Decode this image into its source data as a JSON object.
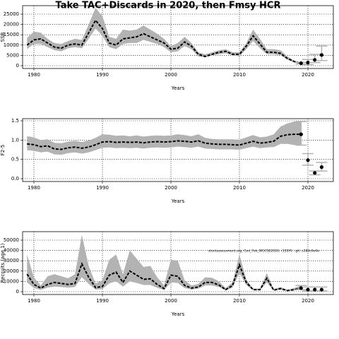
{
  "title": "Take TAC+Discards in 2020, then Fmsy HCR",
  "chart_data": [
    {
      "type": "line",
      "ylabel": "SSB",
      "xlabel": "Years",
      "xlim": [
        1978.35,
        2023.71
      ],
      "xticks": [
        1980,
        1990,
        2000,
        2010,
        2020
      ],
      "ylim": [
        -1370,
        29110
      ],
      "yticks": [
        0,
        5000,
        10000,
        15000,
        20000,
        25000
      ],
      "grid": true,
      "x": [
        1979,
        1980,
        1981,
        1982,
        1983,
        1984,
        1985,
        1986,
        1987,
        1988,
        1989,
        1990,
        1991,
        1992,
        1993,
        1994,
        1995,
        1996,
        1997,
        1998,
        1999,
        2000,
        2001,
        2002,
        2003,
        2004,
        2005,
        2006,
        2007,
        2008,
        2009,
        2010,
        2011,
        2012,
        2013,
        2014,
        2015,
        2016,
        2017,
        2018,
        2019
      ],
      "median": [
        10000,
        12500,
        13000,
        11000,
        9000,
        8500,
        10000,
        10500,
        10000,
        16000,
        22000,
        18000,
        11000,
        10000,
        13000,
        13500,
        14000,
        15500,
        14000,
        12500,
        11000,
        8000,
        8500,
        11500,
        9500,
        5500,
        4500,
        5500,
        6500,
        7000,
        5500,
        5500,
        9500,
        14500,
        10500,
        6500,
        6500,
        6000,
        3500,
        2000,
        1200
      ],
      "upper": [
        13500,
        16500,
        16000,
        13000,
        11000,
        10500,
        12000,
        13000,
        12500,
        20000,
        28000,
        24000,
        14000,
        13000,
        17500,
        17000,
        17500,
        19500,
        17500,
        15500,
        13000,
        9500,
        11000,
        14000,
        11000,
        6500,
        5500,
        6500,
        7500,
        8000,
        6500,
        6500,
        11000,
        17500,
        13000,
        8000,
        8000,
        7500,
        4500,
        2500,
        1500
      ],
      "lower": [
        8000,
        10500,
        10500,
        9000,
        7500,
        7000,
        8500,
        9000,
        8500,
        13000,
        18000,
        14500,
        9000,
        8000,
        10500,
        11000,
        11000,
        12500,
        11500,
        10500,
        9000,
        6500,
        7000,
        9500,
        8000,
        4500,
        4000,
        5000,
        5500,
        6000,
        5000,
        4500,
        8000,
        12000,
        8500,
        5500,
        5500,
        5000,
        3000,
        1700,
        900
      ],
      "proj_x": [
        2019,
        2020,
        2021,
        2022
      ],
      "proj_values": [
        1200,
        1500,
        2800,
        5200
      ],
      "proj_lower": [
        800,
        500,
        1500,
        2500
      ],
      "proj_upper": [
        1600,
        3000,
        5500,
        9500
      ],
      "band_color": "#b3b3b3",
      "line_color": "#000000"
    },
    {
      "type": "line",
      "ylabel": "F2-5",
      "xlabel": "Years",
      "xlim": [
        1978.35,
        2023.71
      ],
      "xticks": [
        1980,
        1990,
        2000,
        2010,
        2020
      ],
      "ylim": [
        -0.073,
        1.555
      ],
      "yticks": [
        {
          "value": 0,
          "label": "0.0"
        },
        0.5,
        {
          "value": 1,
          "label": "1.0"
        },
        1.5
      ],
      "grid": true,
      "x": [
        1979,
        1980,
        1981,
        1982,
        1983,
        1984,
        1985,
        1986,
        1987,
        1988,
        1989,
        1990,
        1991,
        1992,
        1993,
        1994,
        1995,
        1996,
        1997,
        1998,
        1999,
        2000,
        2001,
        2002,
        2003,
        2004,
        2005,
        2006,
        2007,
        2008,
        2009,
        2010,
        2011,
        2012,
        2013,
        2014,
        2015,
        2016,
        2017,
        2018,
        2019
      ],
      "median": [
        0.9,
        0.88,
        0.83,
        0.85,
        0.77,
        0.76,
        0.8,
        0.82,
        0.79,
        0.82,
        0.88,
        0.95,
        0.96,
        0.94,
        0.95,
        0.94,
        0.95,
        0.93,
        0.95,
        0.96,
        0.95,
        0.96,
        0.98,
        0.97,
        0.95,
        0.98,
        0.92,
        0.9,
        0.89,
        0.89,
        0.88,
        0.87,
        0.92,
        0.97,
        0.92,
        0.94,
        0.97,
        1.1,
        1.14,
        1.15,
        1.15
      ],
      "upper": [
        1.1,
        1.07,
        1.0,
        1.02,
        0.93,
        0.92,
        0.96,
        0.98,
        0.95,
        0.99,
        1.06,
        1.15,
        1.14,
        1.11,
        1.12,
        1.1,
        1.12,
        1.09,
        1.11,
        1.12,
        1.11,
        1.12,
        1.15,
        1.13,
        1.1,
        1.15,
        1.06,
        1.03,
        1.02,
        1.02,
        1.02,
        1.01,
        1.07,
        1.13,
        1.07,
        1.09,
        1.15,
        1.35,
        1.43,
        1.48,
        1.48
      ],
      "lower": [
        0.74,
        0.72,
        0.68,
        0.7,
        0.63,
        0.62,
        0.66,
        0.68,
        0.65,
        0.68,
        0.74,
        0.8,
        0.81,
        0.79,
        0.8,
        0.79,
        0.8,
        0.78,
        0.8,
        0.81,
        0.8,
        0.81,
        0.83,
        0.82,
        0.8,
        0.83,
        0.78,
        0.77,
        0.76,
        0.76,
        0.76,
        0.75,
        0.79,
        0.83,
        0.79,
        0.81,
        0.82,
        0.9,
        0.9,
        0.87,
        0.87
      ],
      "proj_x": [
        2019,
        2020,
        2021,
        2022
      ],
      "proj_values": [
        1.15,
        0.48,
        0.15,
        0.3
      ],
      "proj_lower": [
        0.87,
        0.35,
        0.1,
        0.2
      ],
      "proj_upper": [
        1.48,
        0.65,
        0.2,
        0.42
      ],
      "band_color": "#b3b3b3",
      "line_color": "#000000"
    },
    {
      "type": "line",
      "ylabel": "Recruits (age 1)",
      "xlabel": "Years",
      "annotation": "stockassessment.org: Cod_7ek_WGCSE2020, r1SSY0 : git: c28dc0e4a",
      "xlim": [
        1978.35,
        2023.71
      ],
      "xticks": [
        1980,
        1990,
        2000,
        2010,
        2020
      ],
      "ylim": [
        -2740,
        58220
      ],
      "yticks": [
        0,
        10000,
        20000,
        30000,
        40000,
        50000
      ],
      "grid": true,
      "x": [
        1979,
        1980,
        1981,
        1982,
        1983,
        1984,
        1985,
        1986,
        1987,
        1988,
        1989,
        1990,
        1991,
        1992,
        1993,
        1994,
        1995,
        1996,
        1997,
        1998,
        1999,
        2000,
        2001,
        2002,
        2003,
        2004,
        2005,
        2006,
        2007,
        2008,
        2009,
        2010,
        2011,
        2012,
        2013,
        2014,
        2015,
        2016,
        2017,
        2018,
        2019
      ],
      "median": [
        17000,
        7000,
        3500,
        7000,
        9000,
        8000,
        7000,
        8000,
        27000,
        14000,
        4000,
        5000,
        16000,
        19000,
        9000,
        20000,
        16000,
        12000,
        12500,
        7000,
        3000,
        16000,
        15000,
        6000,
        3500,
        4500,
        9000,
        9000,
        6500,
        2000,
        6000,
        26000,
        9000,
        2000,
        2000,
        13000,
        1500,
        3000,
        1000,
        2000,
        3500
      ],
      "upper": [
        36000,
        14000,
        6000,
        15000,
        17000,
        15000,
        13000,
        17000,
        55000,
        25000,
        8000,
        11000,
        31000,
        36000,
        17000,
        40000,
        32000,
        24000,
        25000,
        14000,
        6000,
        31000,
        30000,
        11000,
        6000,
        7500,
        14000,
        13500,
        10000,
        3500,
        9000,
        36000,
        12000,
        3000,
        3000,
        18000,
        2500,
        4500,
        1800,
        3500,
        6000
      ],
      "lower": [
        9000,
        3500,
        1800,
        4000,
        5000,
        4500,
        4000,
        4500,
        14000,
        7500,
        2000,
        2500,
        8000,
        10000,
        5000,
        10000,
        8500,
        6500,
        6500,
        3800,
        1500,
        9000,
        8500,
        3500,
        2000,
        3000,
        6000,
        6000,
        4500,
        1200,
        4000,
        18000,
        6500,
        1300,
        1300,
        9000,
        900,
        2000,
        600,
        1200,
        2000
      ],
      "proj_x": [
        2019,
        2020,
        2021,
        2022
      ],
      "proj_values": [
        3500,
        2000,
        2000,
        2000
      ],
      "proj_lower": [
        2000,
        800,
        800,
        800
      ],
      "proj_upper": [
        6000,
        4500,
        4500,
        4500
      ],
      "band_color": "#b3b3b3",
      "line_color": "#000000"
    }
  ]
}
